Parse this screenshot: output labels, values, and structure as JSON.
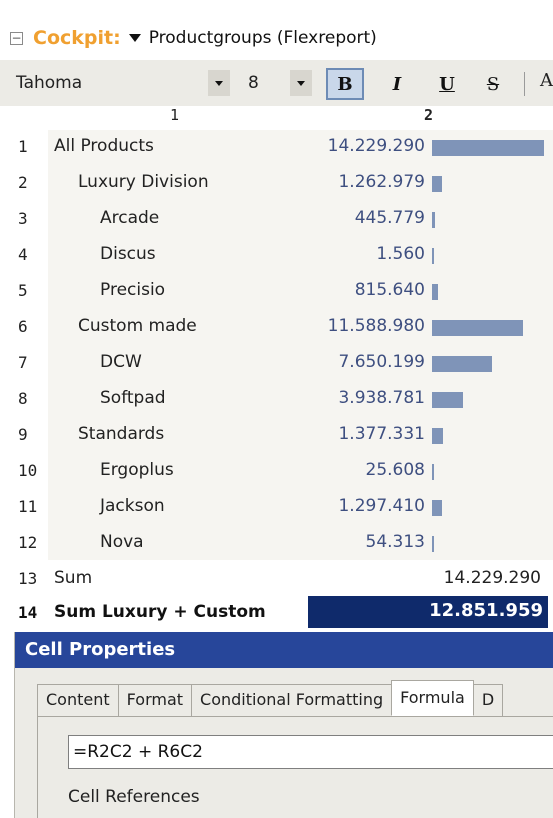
{
  "title_bar": {
    "collapse_symbol": "−",
    "app_name": "Cockpit:",
    "report_title": "Productgroups (Flexreport)"
  },
  "toolbar": {
    "font_name": "Tahoma",
    "font_size": "8",
    "bold_label": "B",
    "italic_label": "I",
    "underline_label": "U",
    "strike_label": "S",
    "more_label": "A"
  },
  "columns": {
    "col1": "1",
    "col2": "2"
  },
  "rows": [
    {
      "num": "1",
      "label": "All Products",
      "value": "14.229.290",
      "bar": 1.0
    },
    {
      "num": "2",
      "label": "Luxury Division",
      "value": "1.262.979",
      "bar": 0.089
    },
    {
      "num": "3",
      "label": "Arcade",
      "value": "445.779",
      "bar": 0.031
    },
    {
      "num": "4",
      "label": "Discus",
      "value": "1.560",
      "bar": 0.0001
    },
    {
      "num": "5",
      "label": "Precisio",
      "value": "815.640",
      "bar": 0.057
    },
    {
      "num": "6",
      "label": "Custom made",
      "value": "11.588.980",
      "bar": 0.814
    },
    {
      "num": "7",
      "label": "DCW",
      "value": "7.650.199",
      "bar": 0.538
    },
    {
      "num": "8",
      "label": "Softpad",
      "value": "3.938.781",
      "bar": 0.277
    },
    {
      "num": "9",
      "label": "Standards",
      "value": "1.377.331",
      "bar": 0.097
    },
    {
      "num": "10",
      "label": "Ergoplus",
      "value": "25.608",
      "bar": 0.0018
    },
    {
      "num": "11",
      "label": "Jackson",
      "value": "1.297.410",
      "bar": 0.091
    },
    {
      "num": "12",
      "label": "Nova",
      "value": "54.313",
      "bar": 0.0038
    },
    {
      "num": "13",
      "label": "Sum",
      "value": "14.229.290"
    },
    {
      "num": "14",
      "label": "Sum Luxury + Custom",
      "value": "12.851.959"
    }
  ],
  "panel": {
    "header": "Cell Properties",
    "tabs": [
      "Content",
      "Format",
      "Conditional Formatting",
      "Formula",
      "D"
    ],
    "active_tab": "Formula",
    "formula_value": "=R2C2 + R6C2",
    "cell_references_label": "Cell References"
  },
  "colors": {
    "accent_orange": "#f0a030",
    "panel_header_blue": "#27469a",
    "selected_cell_navy": "#0f2a6b",
    "bar_color": "#7f94b8",
    "value_text_blue": "#3e4f80"
  }
}
